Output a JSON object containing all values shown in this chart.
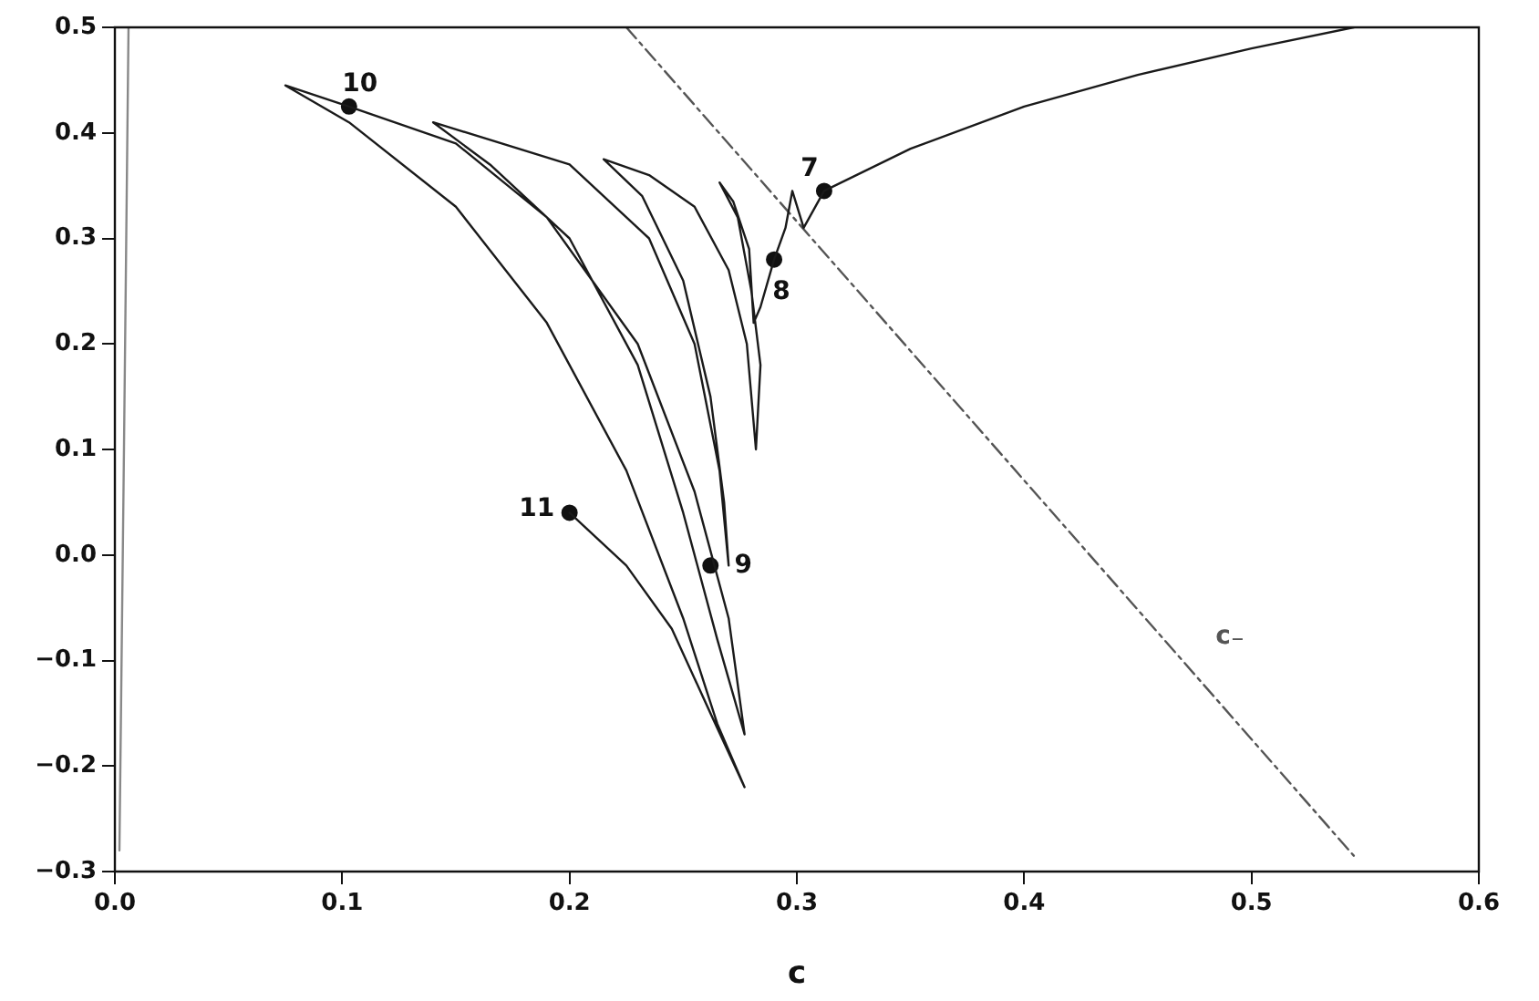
{
  "chart_data": {
    "type": "line",
    "xlabel": "c",
    "xlim": [
      0,
      0.6
    ],
    "ylim": [
      -0.3,
      0.5
    ],
    "xticks": [
      {
        "value": 0,
        "label": "0.0"
      },
      {
        "value": 0.1,
        "label": "0.1"
      },
      {
        "value": 0.2,
        "label": "0.2"
      },
      {
        "value": 0.3,
        "label": "0.3"
      },
      {
        "value": 0.4,
        "label": "0.4"
      },
      {
        "value": 0.5,
        "label": "0.5"
      },
      {
        "value": 0.6,
        "label": "0.6"
      }
    ],
    "yticks": [
      {
        "value": -0.3,
        "label": "−0.3"
      },
      {
        "value": -0.2,
        "label": "−0.2"
      },
      {
        "value": -0.1,
        "label": "−0.1"
      },
      {
        "value": 0,
        "label": "0.0"
      },
      {
        "value": 0.1,
        "label": "0.1"
      },
      {
        "value": 0.2,
        "label": "0.2"
      },
      {
        "value": 0.3,
        "label": "0.3"
      },
      {
        "value": 0.4,
        "label": "0.4"
      },
      {
        "value": 0.5,
        "label": "0.5"
      }
    ],
    "grid": false,
    "legend": false,
    "series": [
      {
        "color": "#1a1a1a",
        "marker": "none",
        "line_style": "solid",
        "x": [
          0.545,
          0.5,
          0.45,
          0.4,
          0.35,
          0.312,
          0.303,
          0.298,
          0.295,
          0.29,
          0.284,
          0.281,
          0.279,
          0.272,
          0.266,
          0.274,
          0.28,
          0.284,
          0.282,
          0.278,
          0.27,
          0.255,
          0.235,
          0.215,
          0.232,
          0.25,
          0.262,
          0.268,
          0.27,
          0.266,
          0.255,
          0.235,
          0.2,
          0.14,
          0.165,
          0.2,
          0.23,
          0.25,
          0.265,
          0.277,
          0.27,
          0.255,
          0.23,
          0.19,
          0.15,
          0.103,
          0.075,
          0.103,
          0.15,
          0.19,
          0.225,
          0.25,
          0.265,
          0.277,
          0.262,
          0.245,
          0.225,
          0.2
        ],
        "values": [
          0.5,
          0.48,
          0.455,
          0.425,
          0.385,
          0.345,
          0.31,
          0.345,
          0.31,
          0.28,
          0.235,
          0.22,
          0.29,
          0.335,
          0.353,
          0.32,
          0.25,
          0.18,
          0.1,
          0.2,
          0.27,
          0.33,
          0.36,
          0.375,
          0.34,
          0.26,
          0.15,
          0.05,
          -0.01,
          0.08,
          0.2,
          0.3,
          0.37,
          0.41,
          0.37,
          0.3,
          0.18,
          0.04,
          -0.08,
          -0.17,
          -0.06,
          0.06,
          0.2,
          0.32,
          0.39,
          0.425,
          0.445,
          0.41,
          0.33,
          0.22,
          0.08,
          -0.06,
          -0.16,
          -0.22,
          -0.15,
          -0.07,
          -0.01,
          0.04
        ]
      },
      {
        "color": "#888888",
        "marker": "none",
        "line_style": "solid",
        "x": [
          0.002,
          0.004,
          0.006
        ],
        "values": [
          -0.28,
          0.1,
          0.5
        ]
      },
      {
        "name": "c₋",
        "color": "#555555",
        "marker": "none",
        "line_style": "dashed",
        "x": [
          0.225,
          0.545
        ],
        "values": [
          0.5,
          -0.285
        ]
      },
      {
        "type": "scatter",
        "color": "#111111",
        "marker": "circle",
        "x": [
          0.312,
          0.29,
          0.262,
          0.103,
          0.2
        ],
        "values": [
          0.345,
          0.28,
          -0.01,
          0.425,
          0.04
        ]
      }
    ],
    "annotations": [
      {
        "text": "7",
        "x": 0.312,
        "y": 0.345
      },
      {
        "text": "8",
        "x": 0.29,
        "y": 0.28
      },
      {
        "text": "9",
        "x": 0.262,
        "y": -0.01
      },
      {
        "text": "10",
        "x": 0.103,
        "y": 0.425
      },
      {
        "text": "11",
        "x": 0.2,
        "y": 0.04
      }
    ]
  }
}
